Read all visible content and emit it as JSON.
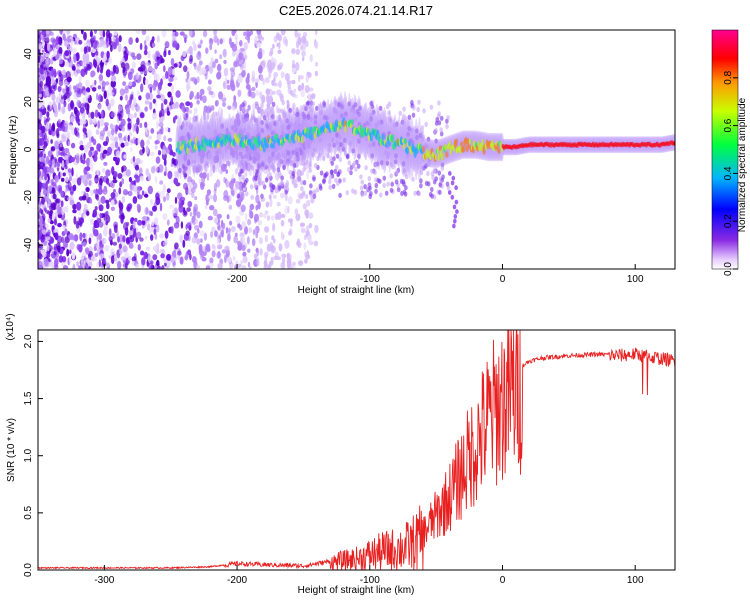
{
  "title": "C2E5.2026.074.21.14.R17",
  "chart_data": [
    {
      "type": "heatmap",
      "name": "spectrogram",
      "xlabel": "Height of straight line (km)",
      "ylabel": "Frequency (Hz)",
      "xlim": [
        -350,
        130
      ],
      "ylim": [
        -50,
        50
      ],
      "xticks": [
        -300,
        -200,
        -100,
        0,
        100
      ],
      "yticks": [
        -40,
        -20,
        0,
        20,
        40
      ],
      "colorbar": {
        "label": "Normalized spectral amplitude",
        "range": [
          0,
          1
        ],
        "ticks": [
          0.0,
          0.2,
          0.4,
          0.6,
          0.8
        ],
        "tick_labels": [
          "0.0",
          "0.2",
          "0.4",
          "0.6",
          "0.8"
        ],
        "colors": [
          "#ffffff",
          "#6a00d8",
          "#0000ff",
          "#00c8ff",
          "#00ff40",
          "#c8ff00",
          "#ff8000",
          "#ff0000",
          "#ff0090"
        ]
      },
      "ridge": {
        "x": [
          -240,
          -220,
          -200,
          -180,
          -160,
          -150,
          -140,
          -130,
          -120,
          -110,
          -100,
          -90,
          -80,
          -70,
          -60,
          -50,
          -40,
          -30,
          -20,
          -10,
          0,
          10,
          20,
          40,
          60,
          80,
          100,
          120,
          130
        ],
        "freq": [
          1,
          3,
          4,
          2,
          5,
          6,
          7,
          9,
          11,
          9,
          7,
          4,
          3,
          1,
          -1,
          -2,
          0,
          2,
          2,
          1,
          1,
          1,
          2,
          2,
          2,
          2,
          2,
          2,
          3
        ]
      }
    },
    {
      "type": "line",
      "name": "snr",
      "title": "",
      "xlabel": "Height of straight line (km)",
      "ylabel": "SNR (10 * v/v)",
      "scale_label": "(x10⁴)",
      "xlim": [
        -350,
        130
      ],
      "ylim": [
        0,
        2.1
      ],
      "xticks": [
        -300,
        -200,
        -100,
        0,
        100
      ],
      "yticks": [
        0.0,
        0.5,
        1.0,
        1.5,
        2.0
      ],
      "ytick_labels": [
        "0.0",
        "0.5",
        "1.0",
        "1.5",
        "2.0"
      ],
      "color": "#e82020",
      "series": [
        {
          "name": "SNR",
          "x": [
            -350,
            -300,
            -250,
            -220,
            -200,
            -180,
            -150,
            -130,
            -110,
            -100,
            -90,
            -80,
            -70,
            -60,
            -50,
            -40,
            -30,
            -20,
            -10,
            0,
            10,
            20,
            30,
            50,
            70,
            90,
            100,
            110,
            120,
            130
          ],
          "y": [
            0.02,
            0.02,
            0.02,
            0.03,
            0.06,
            0.05,
            0.04,
            0.08,
            0.12,
            0.16,
            0.2,
            0.22,
            0.26,
            0.35,
            0.52,
            0.7,
            0.95,
            1.2,
            1.45,
            1.62,
            1.75,
            1.83,
            1.86,
            1.88,
            1.89,
            1.89,
            1.9,
            1.88,
            1.86,
            1.84
          ]
        }
      ]
    }
  ]
}
